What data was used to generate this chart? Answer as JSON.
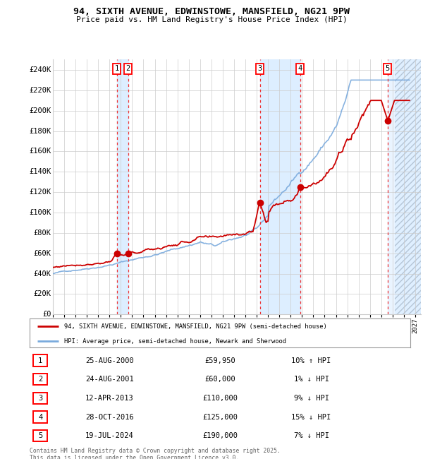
{
  "title_line1": "94, SIXTH AVENUE, EDWINSTOWE, MANSFIELD, NG21 9PW",
  "title_line2": "Price paid vs. HM Land Registry's House Price Index (HPI)",
  "ylim": [
    0,
    250000
  ],
  "yticks": [
    0,
    20000,
    40000,
    60000,
    80000,
    100000,
    120000,
    140000,
    160000,
    180000,
    200000,
    220000,
    240000
  ],
  "ytick_labels": [
    "£0",
    "£20K",
    "£40K",
    "£60K",
    "£80K",
    "£100K",
    "£120K",
    "£140K",
    "£160K",
    "£180K",
    "£200K",
    "£220K",
    "£240K"
  ],
  "xlim_start": 1995.0,
  "xlim_end": 2027.5,
  "sale_dates": [
    2000.646,
    2001.646,
    2013.278,
    2016.829,
    2024.543
  ],
  "sale_prices": [
    59950,
    60000,
    110000,
    125000,
    190000
  ],
  "sale_labels": [
    "1",
    "2",
    "3",
    "4",
    "5"
  ],
  "transaction_table": [
    {
      "num": "1",
      "date": "25-AUG-2000",
      "price": "£59,950",
      "hpi": "10% ↑ HPI"
    },
    {
      "num": "2",
      "date": "24-AUG-2001",
      "price": "£60,000",
      "hpi": "1% ↓ HPI"
    },
    {
      "num": "3",
      "date": "12-APR-2013",
      "price": "£110,000",
      "hpi": "9% ↓ HPI"
    },
    {
      "num": "4",
      "date": "28-OCT-2016",
      "price": "£125,000",
      "hpi": "15% ↓ HPI"
    },
    {
      "num": "5",
      "date": "19-JUL-2024",
      "price": "£190,000",
      "hpi": "7% ↓ HPI"
    }
  ],
  "legend_red_label": "94, SIXTH AVENUE, EDWINSTOWE, MANSFIELD, NG21 9PW (semi-detached house)",
  "legend_blue_label": "HPI: Average price, semi-detached house, Newark and Sherwood",
  "footer_text": "Contains HM Land Registry data © Crown copyright and database right 2025.\nThis data is licensed under the Open Government Licence v3.0.",
  "red_color": "#cc0000",
  "blue_color": "#7aaadd",
  "shading_color": "#ddeeff",
  "vline_color": "#ee3333",
  "background_color": "#ffffff",
  "grid_color": "#cccccc"
}
